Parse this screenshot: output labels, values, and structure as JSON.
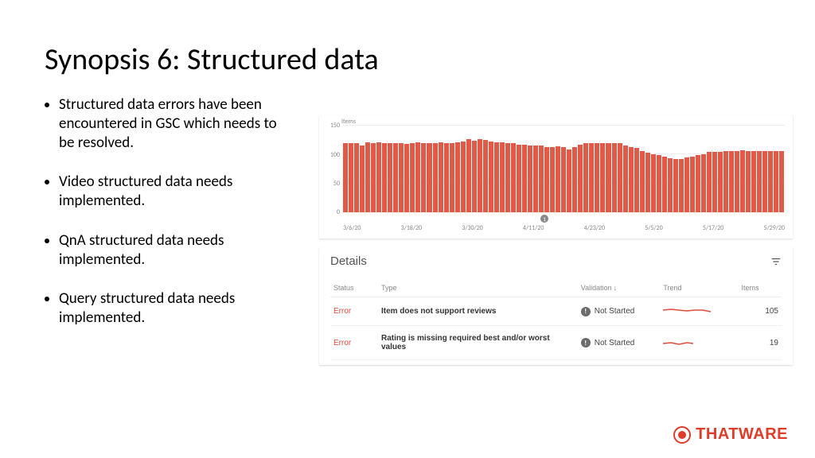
{
  "slide": {
    "title": "Synopsis 6: Structured data",
    "bullets": [
      "Structured data errors have been encountered in GSC which needs to be resolved.",
      "Video structured data needs implemented.",
      "QnA structured data needs implemented.",
      "Query structured data needs implemented."
    ]
  },
  "chart": {
    "type": "bar",
    "ylabel": "Items",
    "ylim": [
      0,
      150
    ],
    "ytick_values": [
      0,
      50,
      100,
      150
    ],
    "x_labels": [
      "3/6/20",
      "3/18/20",
      "3/30/20",
      "4/11/20",
      "4/23/20",
      "5/5/20",
      "5/17/20",
      "5/29/20"
    ],
    "bar_color": "#e05a47",
    "grid_color": "#eeeeee",
    "background_color": "#ffffff",
    "marker_label": "1",
    "values": [
      118,
      118,
      118,
      115,
      120,
      118,
      120,
      118,
      118,
      118,
      118,
      117,
      118,
      120,
      118,
      118,
      118,
      120,
      118,
      118,
      120,
      122,
      125,
      123,
      125,
      124,
      122,
      120,
      120,
      118,
      118,
      116,
      116,
      115,
      115,
      114,
      112,
      112,
      113,
      112,
      108,
      112,
      116,
      118,
      119,
      118,
      118,
      118,
      118,
      118,
      114,
      112,
      110,
      105,
      102,
      100,
      98,
      95,
      93,
      92,
      92,
      94,
      95,
      98,
      100,
      103,
      104,
      104,
      105,
      105,
      105,
      106,
      105,
      105,
      105,
      105,
      105,
      105,
      105
    ]
  },
  "details": {
    "panel_title": "Details",
    "columns": {
      "status": "Status",
      "type": "Type",
      "validation": "Validation",
      "trend": "Trend",
      "items": "Items"
    },
    "rows": [
      {
        "status": "Error",
        "type": "Item does not support reviews",
        "validation": "Not Started",
        "items": "105",
        "spark": [
          0,
          6,
          10,
          5,
          20,
          6,
          30,
          7,
          40,
          6,
          50,
          6,
          60,
          8
        ]
      },
      {
        "status": "Error",
        "type": "Rating is missing required best and/or worst values",
        "validation": "Not Started",
        "items": "19",
        "spark": [
          0,
          8,
          10,
          7,
          20,
          9,
          30,
          7,
          38,
          8
        ]
      }
    ]
  },
  "brand": {
    "name": "THATWARE",
    "color": "#e03c2a"
  }
}
